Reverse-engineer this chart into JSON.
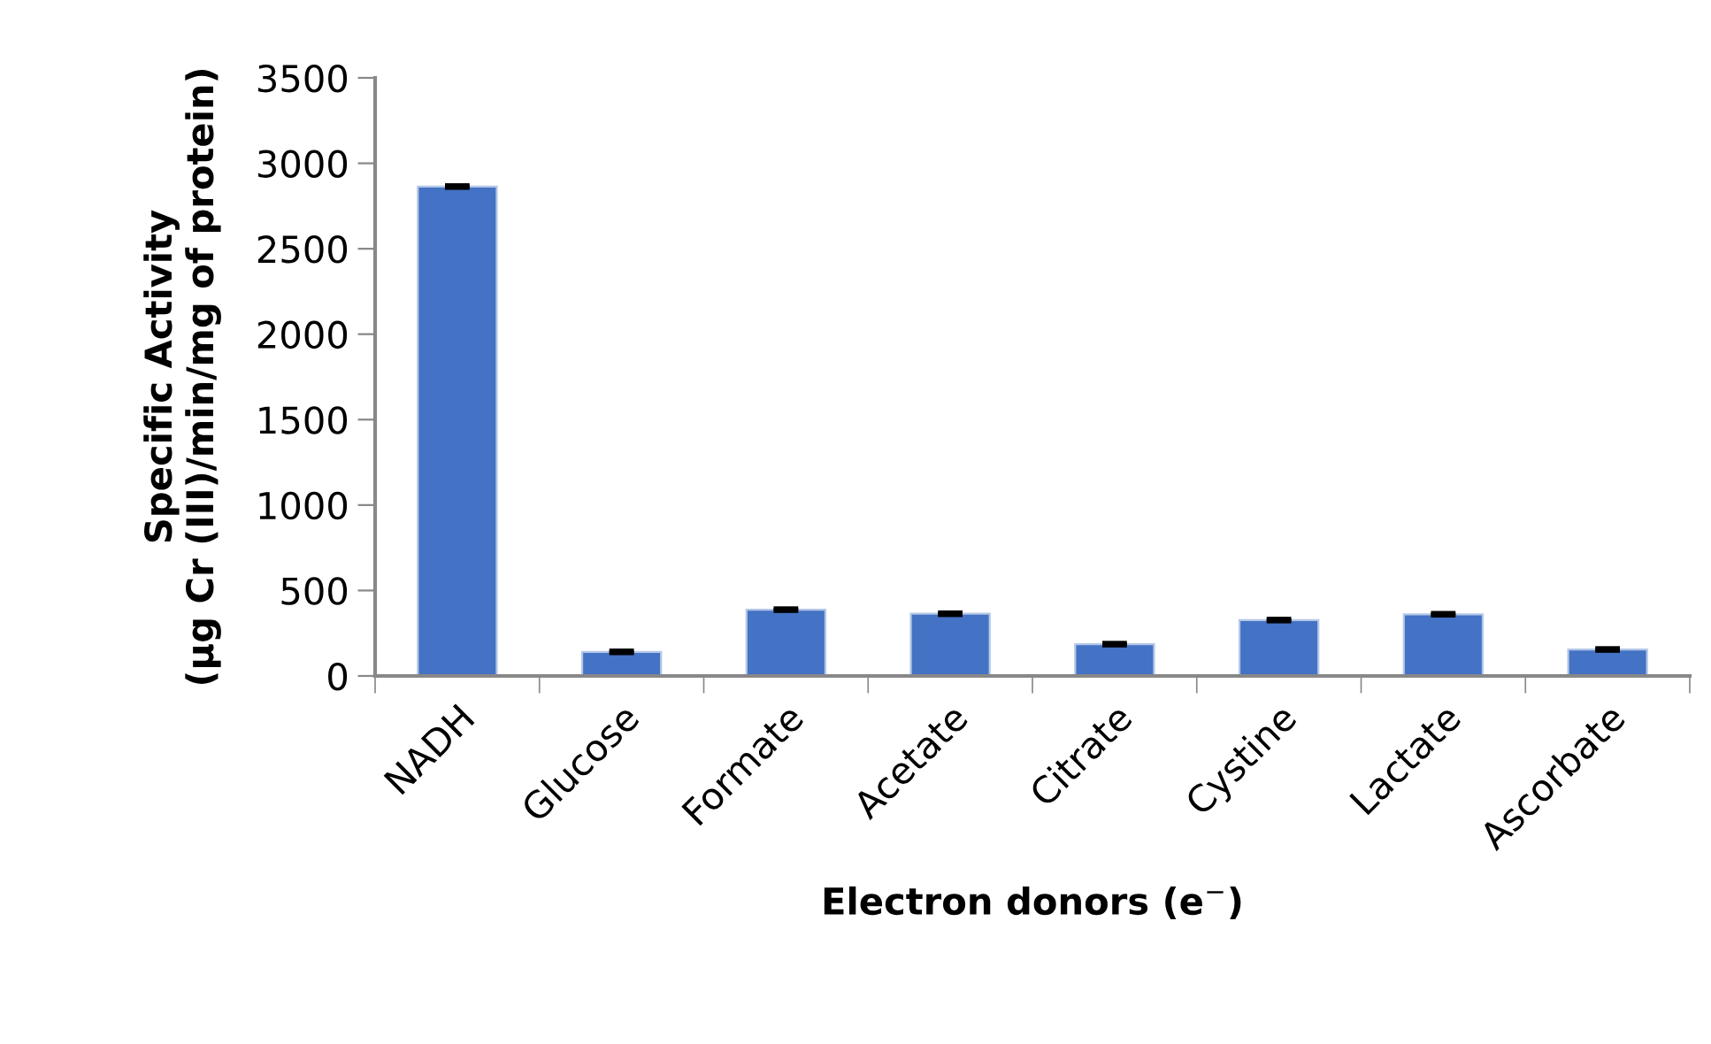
{
  "chart_data": {
    "type": "bar",
    "xlabel": "Electron donors (e$^{−}$)",
    "ylabel": "Specific Activity\n(µg Cr (III)/min/mg of protein)",
    "categories": [
      "NADH",
      "Glucose",
      "Formate",
      "Acetate",
      "Citrate",
      "Cystine",
      "Lactate",
      "Ascorbate"
    ],
    "values": [
      2864,
      141,
      388,
      364,
      186,
      327,
      361,
      155
    ],
    "errors": [
      5,
      5,
      5,
      5,
      5,
      5,
      5,
      5
    ],
    "color": "#4472c4",
    "ylim": [
      0,
      3500
    ],
    "yticks": [
      0,
      500,
      1000,
      1500,
      2000,
      2500,
      3000,
      3500
    ],
    "grid": false,
    "legend": false
  }
}
